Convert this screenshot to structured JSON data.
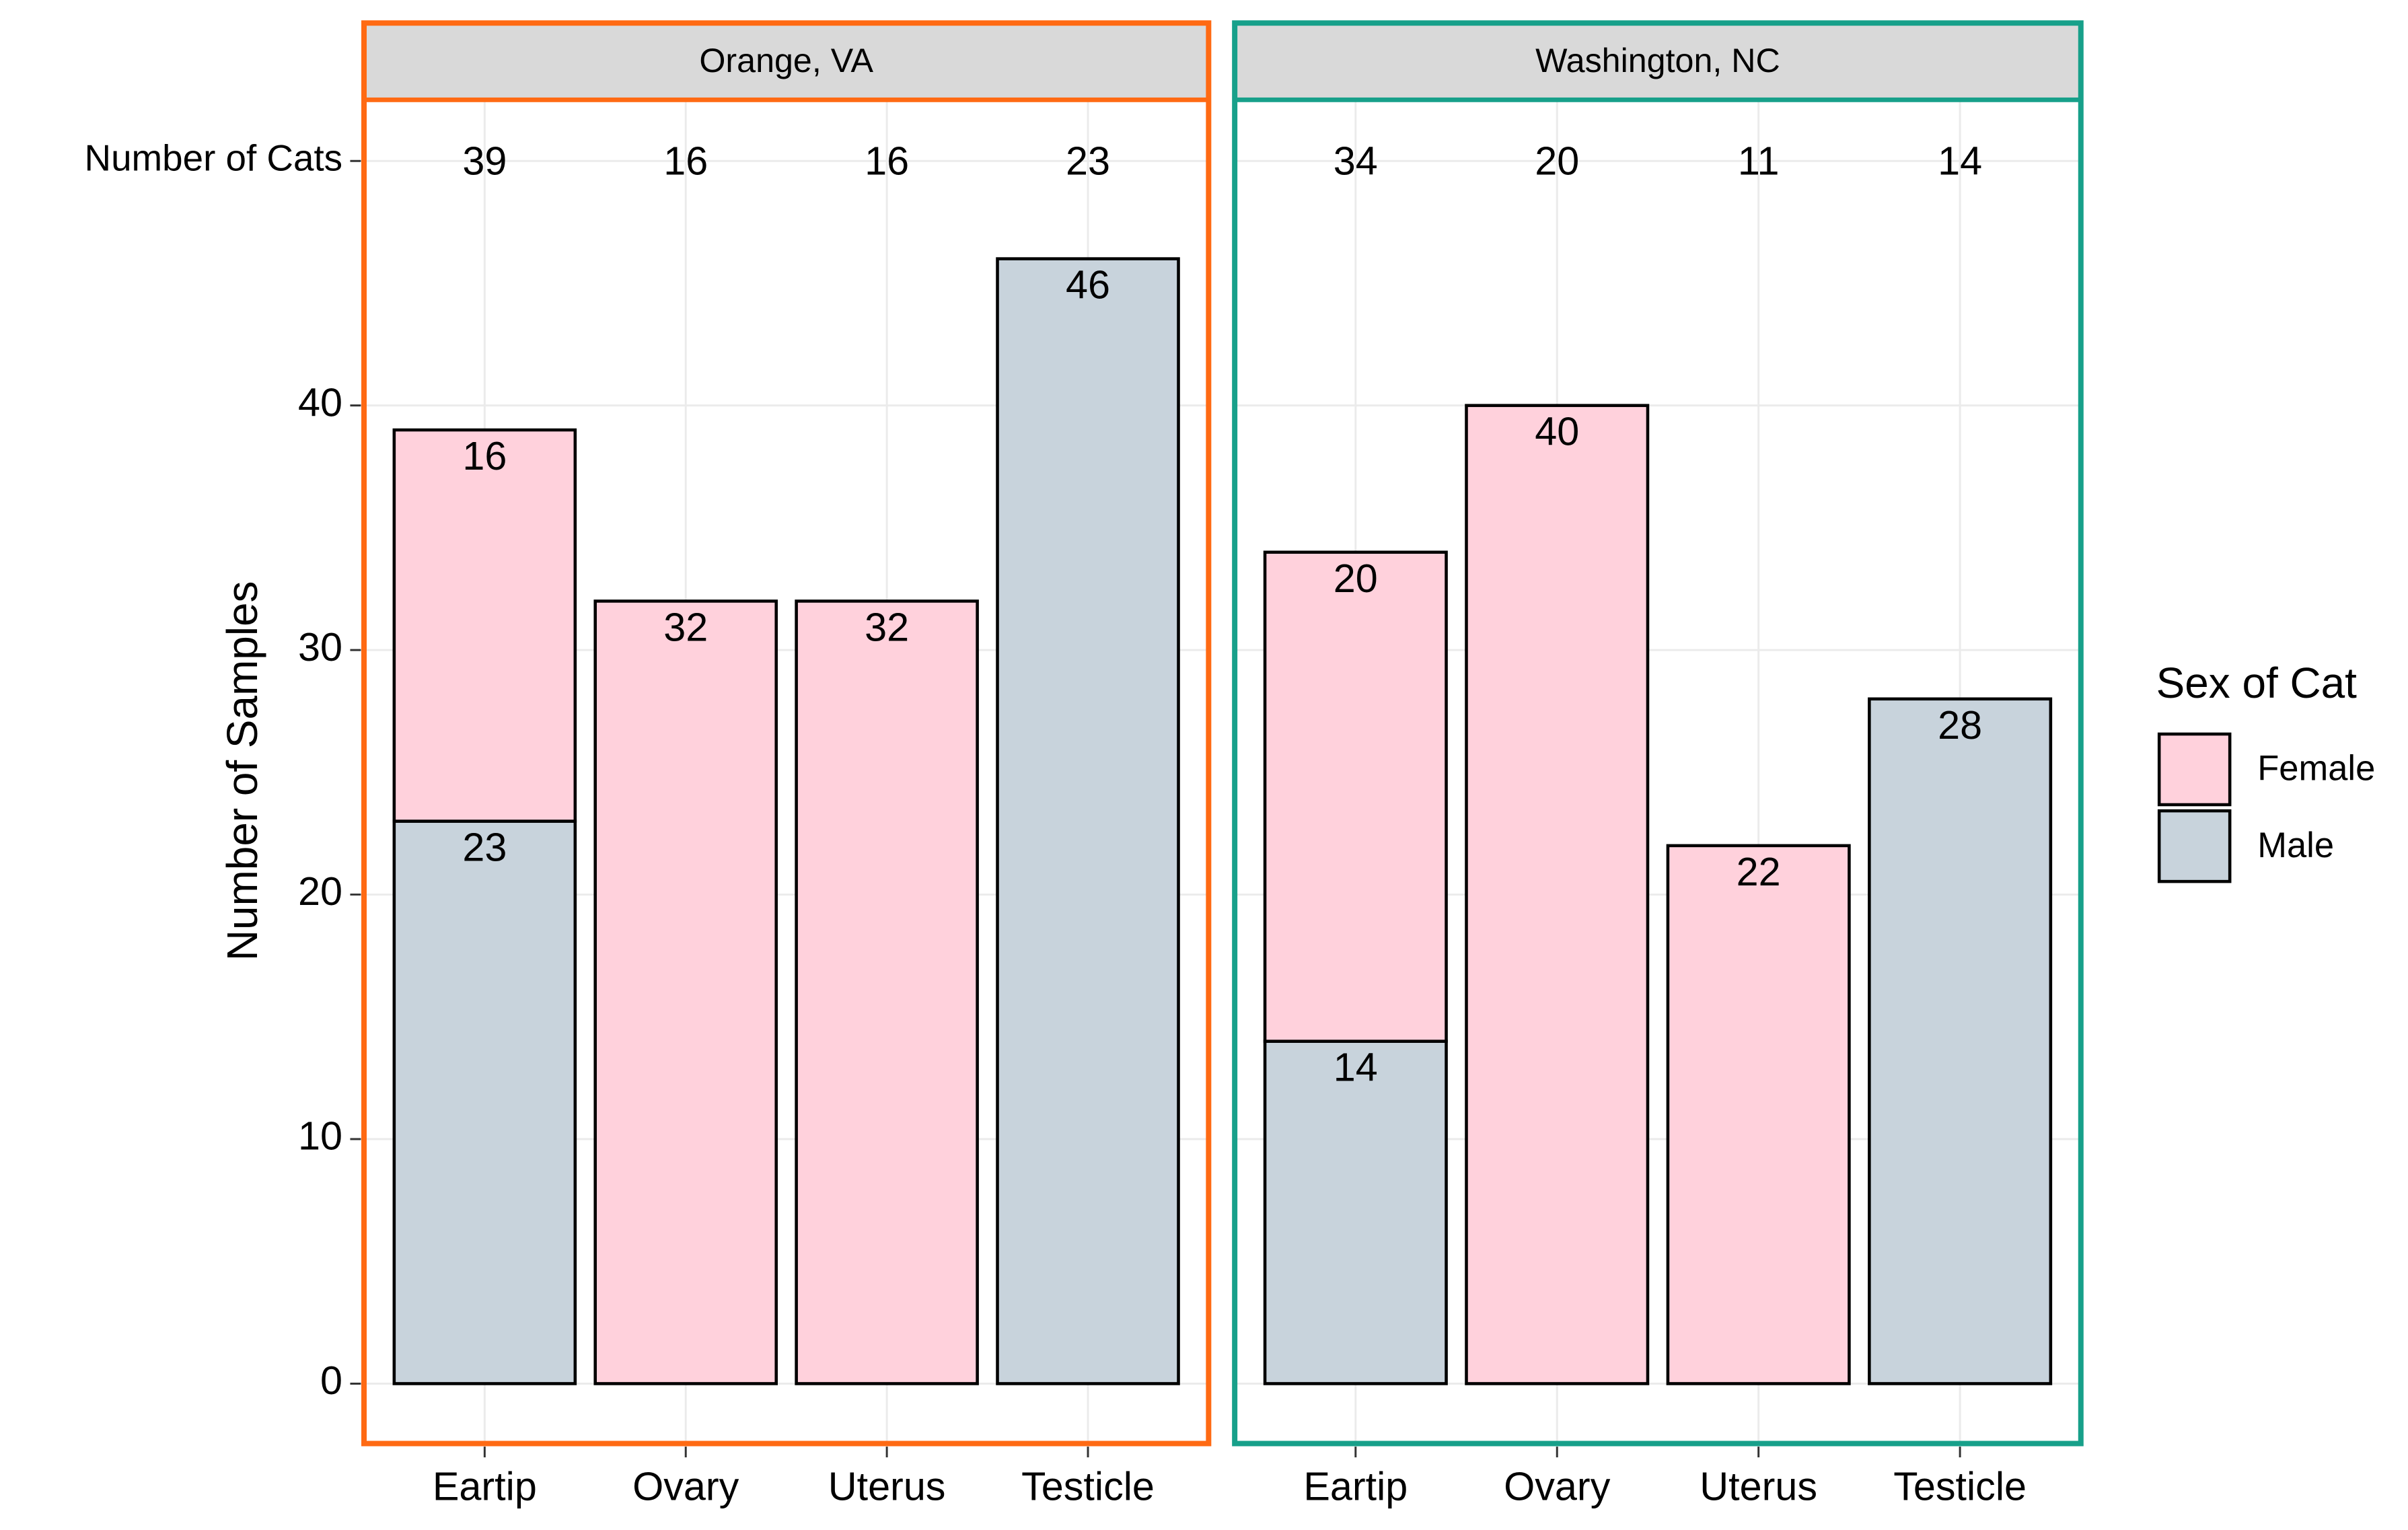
{
  "chart_data": [
    {
      "type": "bar",
      "stacked": true,
      "title": "Orange, VA",
      "frame_color": "#ff6a13",
      "y_label": "Number of Samples",
      "legend_title": "Sex of Cat",
      "categories": [
        "Eartip",
        "Ovary",
        "Uterus",
        "Testicle"
      ],
      "series": [
        {
          "name": "Female",
          "color": "#ffd1dc",
          "values": [
            16,
            32,
            32,
            null
          ]
        },
        {
          "name": "Male",
          "color": "#c8d3dc",
          "values": [
            23,
            null,
            null,
            46
          ]
        }
      ],
      "cats": [
        39,
        16,
        16,
        23
      ],
      "ylim": [
        -2.45,
        52.5
      ],
      "yticks": [
        0,
        10,
        20,
        30,
        40,
        {
          "value": 50,
          "label": "Number of Cats"
        }
      ],
      "grid": true
    },
    {
      "type": "bar",
      "stacked": true,
      "title": "Washington, NC",
      "frame_color": "#17a08a",
      "categories": [
        "Eartip",
        "Ovary",
        "Uterus",
        "Testicle"
      ],
      "series": [
        {
          "name": "Female",
          "color": "#ffd1dc",
          "values": [
            20,
            40,
            22,
            null
          ]
        },
        {
          "name": "Male",
          "color": "#c8d3dc",
          "values": [
            14,
            null,
            null,
            28
          ]
        }
      ],
      "cats": [
        34,
        20,
        11,
        14
      ],
      "ylim": [
        -2.45,
        52.5
      ],
      "yticks": [
        0,
        10,
        20,
        30,
        40,
        {
          "value": 50,
          "label": "Number of Cats"
        }
      ],
      "grid": true
    }
  ]
}
